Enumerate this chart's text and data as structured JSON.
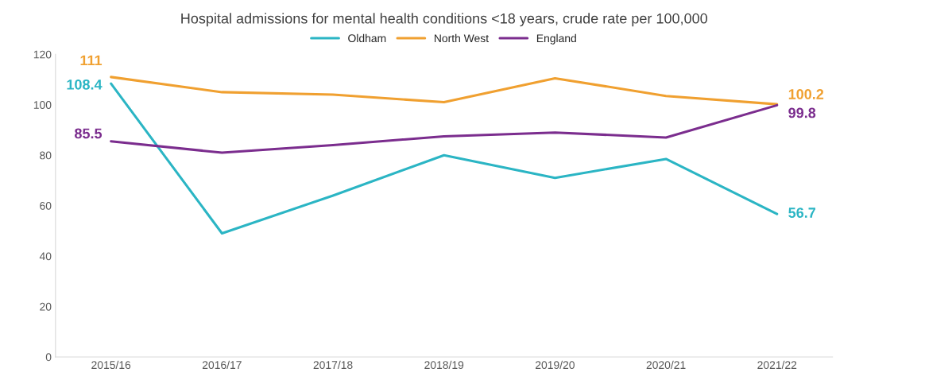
{
  "chart_data": {
    "type": "line",
    "title": "Hospital admissions for mental health conditions <18 years, crude rate per 100,000",
    "categories": [
      "2015/16",
      "2016/17",
      "2017/18",
      "2018/19",
      "2019/20",
      "2020/21",
      "2021/22"
    ],
    "series": [
      {
        "name": "Oldham",
        "color": "#2bb5c4",
        "values": [
          108.4,
          49,
          64,
          80,
          71,
          78.5,
          56.7
        ],
        "value_labels": [
          "108.4",
          null,
          null,
          null,
          null,
          null,
          "56.7"
        ]
      },
      {
        "name": "North West",
        "color": "#f0a030",
        "values": [
          111,
          105,
          104,
          101,
          110.5,
          103.5,
          100.2
        ],
        "value_labels": [
          "111",
          null,
          null,
          null,
          null,
          null,
          "100.2"
        ]
      },
      {
        "name": "England",
        "color": "#7b2d8e",
        "values": [
          85.5,
          81,
          84,
          87.5,
          89,
          87,
          99.8
        ],
        "value_labels": [
          "85.5",
          null,
          null,
          null,
          null,
          null,
          "99.8"
        ]
      }
    ],
    "ylim": [
      0,
      120
    ],
    "yticks": [
      0,
      20,
      40,
      60,
      80,
      100,
      120
    ],
    "grid": false,
    "legend": "top",
    "marker": "none",
    "line_style": "solid"
  }
}
